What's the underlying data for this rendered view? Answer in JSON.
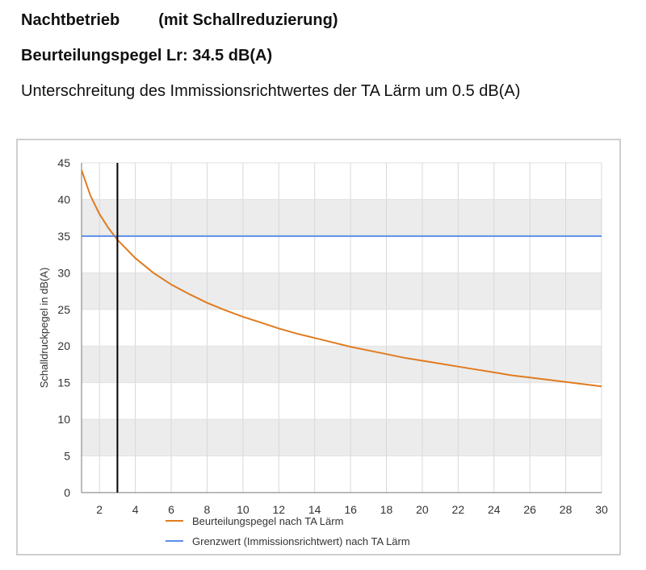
{
  "header": {
    "title": "Nachtbetrieb",
    "subtitle": "(mit Schallreduzierung)",
    "level_line": "Beurteilungspegel Lr: 34.5 dB(A)",
    "description": "Unterschreitung des Immissionsrichtwertes der TA Lärm um 0.5 dB(A)"
  },
  "chart_data": {
    "type": "line",
    "title": "",
    "xlabel": "",
    "ylabel": "Schalldruckpegel in dB(A)",
    "xlim": [
      1,
      30
    ],
    "ylim": [
      0,
      45
    ],
    "x_ticks": [
      2,
      4,
      6,
      8,
      10,
      12,
      14,
      16,
      18,
      20,
      22,
      24,
      26,
      28,
      30
    ],
    "y_ticks": [
      0,
      5,
      10,
      15,
      20,
      25,
      30,
      35,
      40,
      45
    ],
    "grid": true,
    "legend_position": "bottom",
    "x": [
      1,
      1.5,
      2,
      2.5,
      3,
      4,
      5,
      6,
      7,
      8,
      9,
      10,
      11,
      12,
      13,
      14,
      15,
      16,
      17,
      18,
      19,
      20,
      21,
      22,
      23,
      24,
      25,
      26,
      27,
      28,
      29,
      30
    ],
    "series": [
      {
        "name": "Beurteilungspegel nach TA Lärm",
        "color": "#e07b1f",
        "values": [
          44.0,
          40.5,
          38.0,
          36.1,
          34.5,
          32.0,
          30.0,
          28.4,
          27.1,
          25.9,
          24.9,
          24.0,
          23.2,
          22.4,
          21.7,
          21.1,
          20.5,
          19.9,
          19.4,
          18.9,
          18.4,
          18.0,
          17.6,
          17.2,
          16.8,
          16.4,
          16.0,
          15.7,
          15.4,
          15.1,
          14.8,
          14.5
        ]
      },
      {
        "name": "Grenzwert (Immissionsrichtwert) nach TA Lärm",
        "color": "#5b8ee8",
        "values": [
          35,
          35,
          35,
          35,
          35,
          35,
          35,
          35,
          35,
          35,
          35,
          35,
          35,
          35,
          35,
          35,
          35,
          35,
          35,
          35,
          35,
          35,
          35,
          35,
          35,
          35,
          35,
          35,
          35,
          35,
          35,
          35
        ]
      }
    ],
    "marker_line": {
      "x": 3,
      "color": "#000000"
    }
  }
}
